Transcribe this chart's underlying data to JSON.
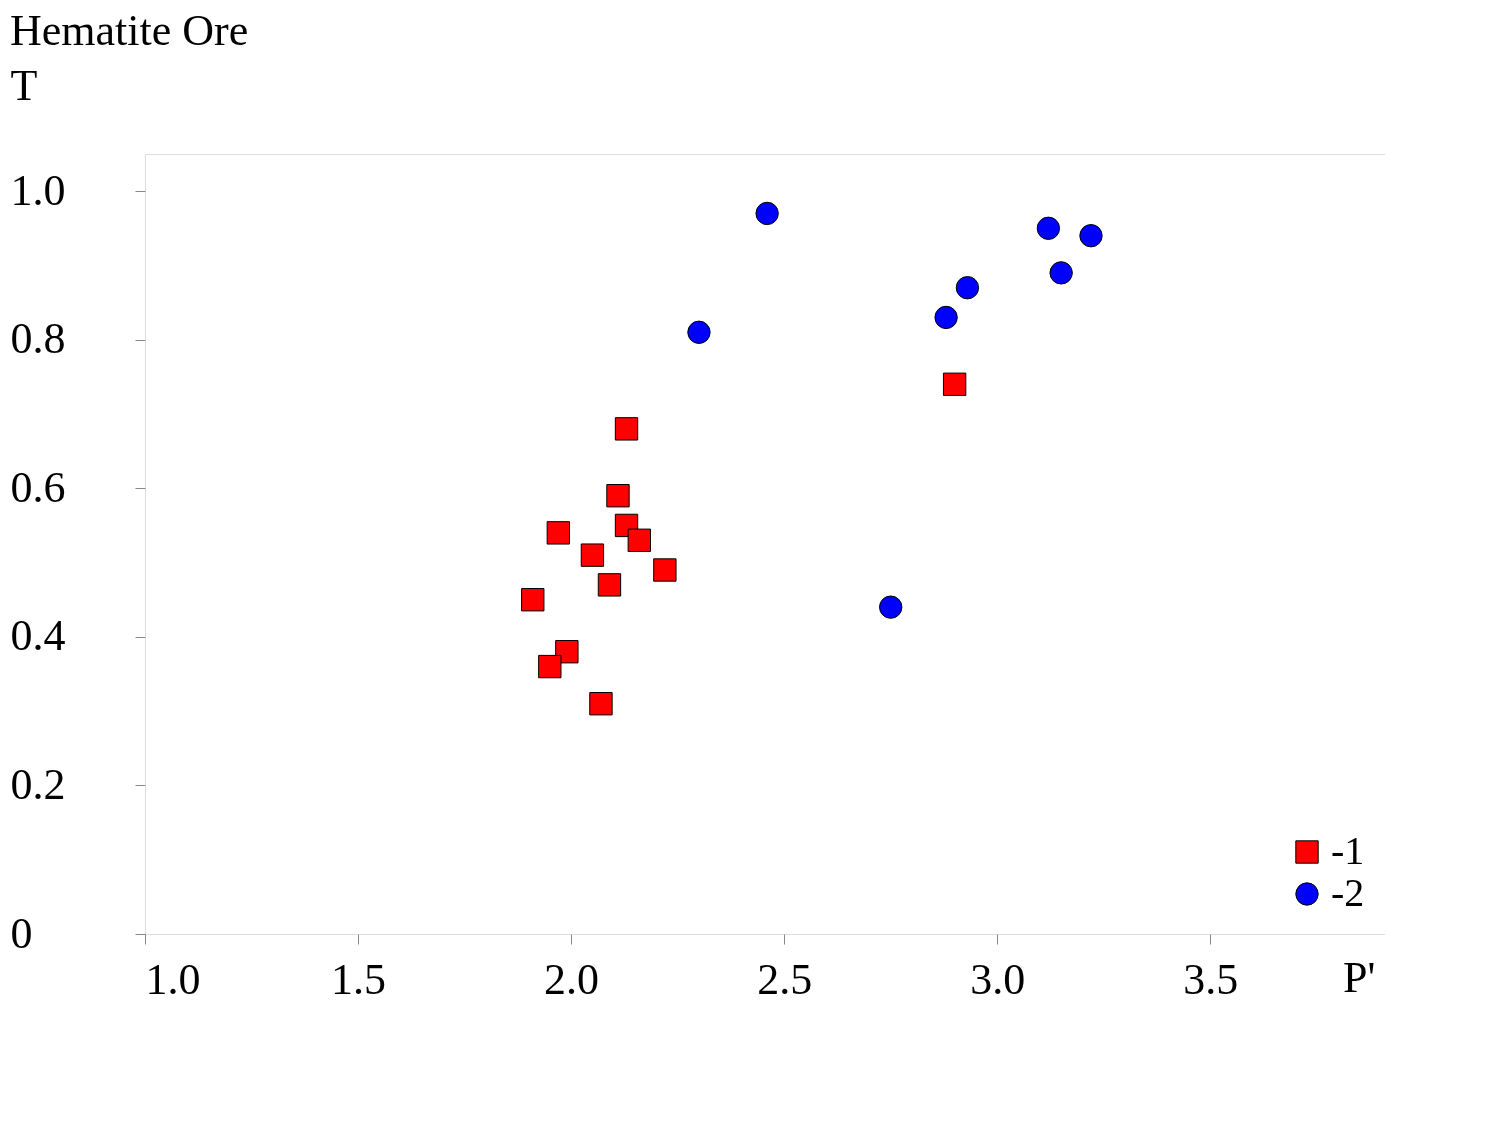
{
  "chart_data": {
    "type": "scatter",
    "title": "Hematite Ore",
    "xlabel": "P'",
    "ylabel": "T",
    "xlim": [
      1.0,
      3.91
    ],
    "ylim": [
      0,
      1.05
    ],
    "xticks": [
      {
        "value": 1,
        "label": "1.0"
      },
      1.5,
      {
        "value": 2,
        "label": "2.0"
      },
      2.5,
      {
        "value": 3,
        "label": "3.0"
      },
      3.5
    ],
    "yticks": [
      0,
      0.2,
      0.4,
      0.6,
      0.8,
      {
        "value": 1,
        "label": "1.0"
      }
    ],
    "grid": false,
    "legend": "bottom right",
    "series": [
      {
        "name": "-1",
        "color": "#ff0000",
        "marker": "square",
        "x": [
          2.13,
          2.11,
          1.97,
          2.13,
          2.16,
          2.05,
          2.22,
          2.09,
          1.91,
          1.99,
          1.95,
          2.07,
          2.9
        ],
        "values": [
          0.68,
          0.59,
          0.54,
          0.55,
          0.53,
          0.51,
          0.49,
          0.47,
          0.45,
          0.38,
          0.36,
          0.31,
          0.74
        ]
      },
      {
        "name": "-2",
        "color": "#0000ff",
        "marker": "circle",
        "x": [
          2.46,
          2.3,
          2.75,
          2.88,
          2.93,
          3.12,
          3.22,
          3.15
        ],
        "values": [
          0.97,
          0.81,
          0.44,
          0.83,
          0.87,
          0.95,
          0.94,
          0.89
        ]
      }
    ]
  }
}
